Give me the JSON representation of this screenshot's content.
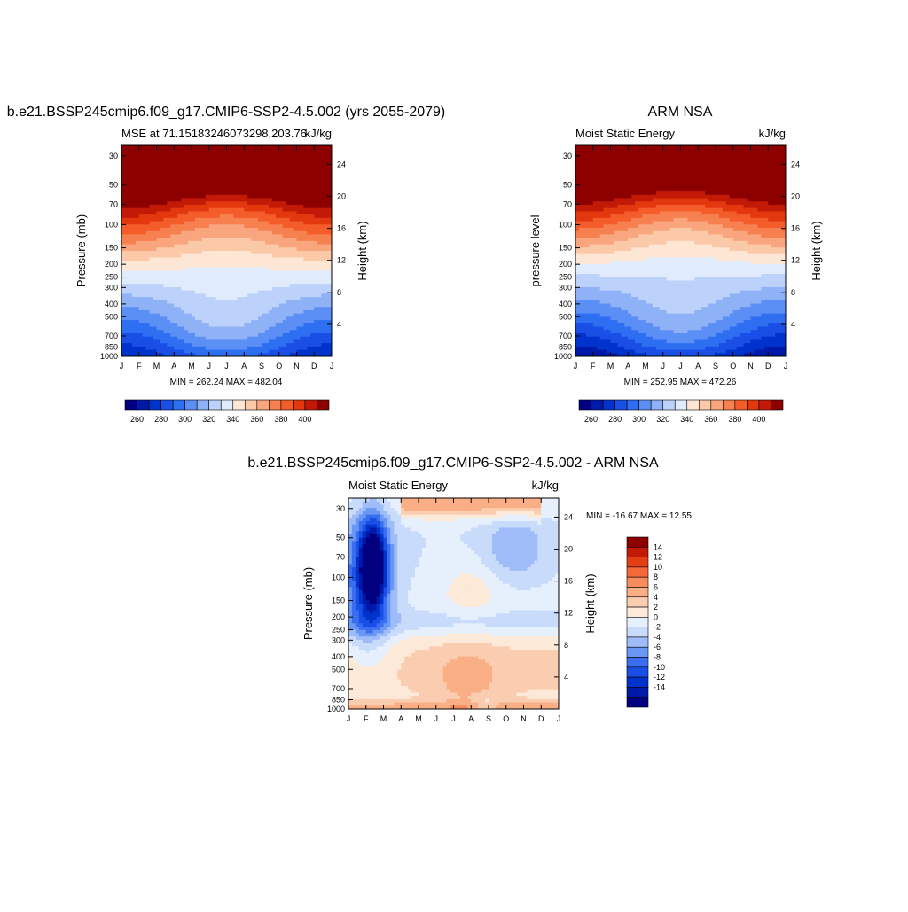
{
  "colors": {
    "abs_palette": [
      "#000080",
      "#0019a8",
      "#0033cc",
      "#1a4fe6",
      "#2e6ff2",
      "#5b8ff5",
      "#8fb2f7",
      "#bcd2fa",
      "#e0ecfc",
      "#fde6d4",
      "#fbc9a8",
      "#f9a57e",
      "#f6804f",
      "#f45c2a",
      "#e3380f",
      "#c21a07",
      "#8c0000"
    ],
    "diff_palette": [
      "#000080",
      "#0019a8",
      "#0033cc",
      "#1a4fe6",
      "#3a6ef0",
      "#6a96f4",
      "#9ebcf8",
      "#c9dbfb",
      "#e6f0fd",
      "#fde9d8",
      "#fbcdb0",
      "#f9ae86",
      "#f68b5c",
      "#f4683a",
      "#e33f14",
      "#c21a07",
      "#8c0000"
    ]
  },
  "panels": {
    "p1": {
      "title": "b.e21.BSSP245cmip6.f09_g17.CMIP6-SSP2-4.5.002 (yrs 2055-2079)",
      "left_text": "MSE at 71.15183246073298,203.76",
      "right_text": "kJ/kg",
      "ylabel": "Pressure (mb)",
      "ylabel_right": "Height (km)",
      "minmax": "MIN = 262.24 MAX = 482.04"
    },
    "p2": {
      "title": "ARM NSA",
      "left_text": "Moist Static Energy",
      "right_text": "kJ/kg",
      "ylabel": "pressure level",
      "ylabel_right": "Height (km)",
      "minmax": "MIN = 252.95 MAX = 472.26"
    },
    "p3": {
      "title": "b.e21.BSSP245cmip6.f09_g17.CMIP6-SSP2-4.5.002 - ARM NSA",
      "left_text": "Moist Static Energy",
      "right_text": "kJ/kg",
      "ylabel": "Pressure (mb)",
      "ylabel_right": "Height (km)",
      "minmax": "MIN = -16.67 MAX =  12.55"
    }
  },
  "chart_data": [
    {
      "type": "heatmap",
      "title": "b.e21.BSSP245cmip6.f09_g17.CMIP6-SSP2-4.5.002 (yrs 2055-2079)",
      "x_ticks": [
        "J",
        "F",
        "M",
        "A",
        "M",
        "J",
        "J",
        "A",
        "S",
        "O",
        "N",
        "D",
        "J"
      ],
      "y_ticks_pressure": [
        30,
        50,
        70,
        100,
        150,
        200,
        250,
        300,
        400,
        500,
        700,
        850,
        1000
      ],
      "y_ticks_height_km": [
        4,
        8,
        12,
        16,
        20,
        24
      ],
      "ylim_pressure": [
        1000,
        25
      ],
      "colorbar_labels": [
        "260",
        "280",
        "300",
        "320",
        "340",
        "360",
        "380",
        "400"
      ],
      "min": 262.24,
      "max": 482.04
    },
    {
      "type": "heatmap",
      "title": "ARM NSA",
      "x_ticks": [
        "J",
        "F",
        "M",
        "A",
        "M",
        "J",
        "J",
        "A",
        "S",
        "O",
        "N",
        "D",
        "J"
      ],
      "y_ticks_pressure": [
        30,
        50,
        70,
        100,
        150,
        200,
        250,
        300,
        400,
        500,
        700,
        850,
        1000
      ],
      "y_ticks_height_km": [
        4,
        8,
        12,
        16,
        20,
        24
      ],
      "ylim_pressure": [
        1000,
        25
      ],
      "colorbar_labels": [
        "260",
        "280",
        "300",
        "320",
        "340",
        "360",
        "380",
        "400"
      ],
      "min": 252.95,
      "max": 472.26
    },
    {
      "type": "heatmap",
      "title": "b.e21.BSSP245cmip6.f09_g17.CMIP6-SSP2-4.5.002 - ARM NSA",
      "x_ticks": [
        "J",
        "F",
        "M",
        "A",
        "M",
        "J",
        "J",
        "A",
        "S",
        "O",
        "N",
        "D",
        "J"
      ],
      "y_ticks_pressure": [
        30,
        50,
        70,
        100,
        150,
        200,
        250,
        300,
        400,
        500,
        700,
        850,
        1000
      ],
      "y_ticks_height_km": [
        4,
        8,
        12,
        16,
        20,
        24
      ],
      "ylim_pressure": [
        1000,
        25
      ],
      "colorbar_labels": [
        "14",
        "12",
        "10",
        "8",
        "6",
        "4",
        "2",
        "0",
        "-2",
        "-4",
        "-6",
        "-8",
        "-10",
        "-12",
        "-14"
      ],
      "min": -16.67,
      "max": 12.55
    }
  ]
}
